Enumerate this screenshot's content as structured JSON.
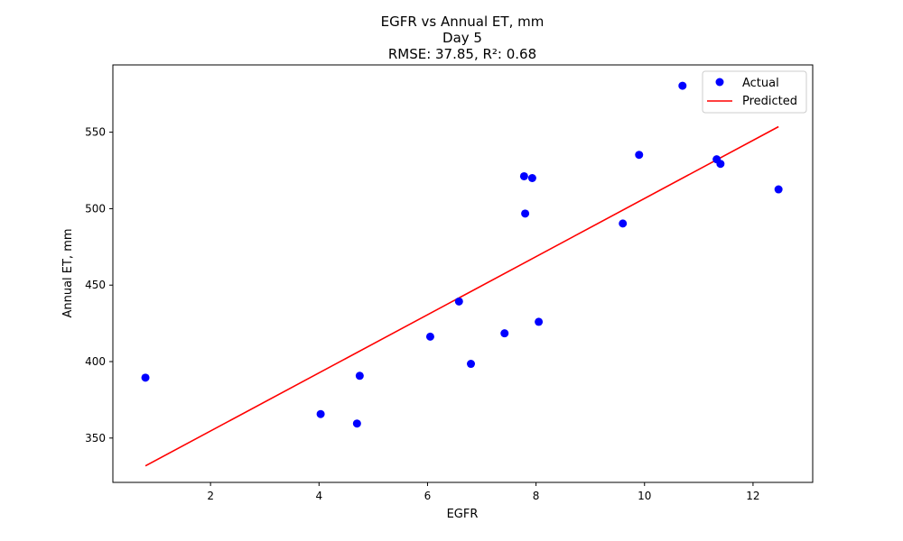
{
  "chart_data": {
    "type": "scatter",
    "title_lines": [
      "EGFR vs Annual ET, mm",
      "Day 5",
      "RMSE: 37.85, R²: 0.68"
    ],
    "xlabel": "EGFR",
    "ylabel": "Annual ET, mm",
    "xlim": [
      0.2,
      13.1
    ],
    "ylim": [
      321,
      594
    ],
    "xticks": [
      2,
      4,
      6,
      8,
      10,
      12
    ],
    "yticks": [
      350,
      400,
      450,
      500,
      550
    ],
    "grid": false,
    "legend_position": "top-right",
    "series": [
      {
        "name": "Actual",
        "kind": "scatter",
        "color": "#0000ff",
        "points": [
          [
            0.8,
            389.5
          ],
          [
            4.03,
            365.7
          ],
          [
            4.7,
            359.5
          ],
          [
            4.75,
            390.7
          ],
          [
            6.05,
            416.3
          ],
          [
            6.58,
            439.3
          ],
          [
            6.8,
            398.5
          ],
          [
            7.42,
            418.5
          ],
          [
            7.78,
            521.2
          ],
          [
            7.8,
            496.8
          ],
          [
            7.93,
            520.0
          ],
          [
            8.05,
            426.0
          ],
          [
            9.6,
            490.3
          ],
          [
            9.9,
            535.2
          ],
          [
            10.7,
            580.4
          ],
          [
            11.33,
            532.3
          ],
          [
            11.4,
            529.3
          ],
          [
            12.47,
            512.6
          ]
        ]
      },
      {
        "name": "Predicted",
        "kind": "line",
        "color": "#ff0000",
        "points": [
          [
            0.8,
            331.8
          ],
          [
            12.47,
            553.6
          ]
        ]
      }
    ]
  }
}
